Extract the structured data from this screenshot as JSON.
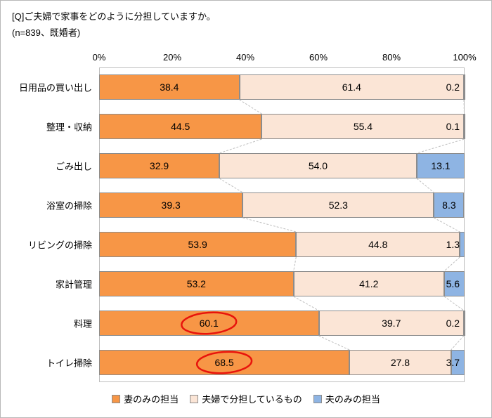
{
  "title": "[Q]ご夫婦で家事をどのように分担していますか。",
  "subtitle": "(n=839、既婚者)",
  "chart_data": {
    "type": "bar",
    "orientation": "horizontal",
    "stacked": true,
    "categories": [
      "日用品の買い出し",
      "整理・収納",
      "ごみ出し",
      "浴室の掃除",
      "リビングの掃除",
      "家計管理",
      "料理",
      "トイレ掃除"
    ],
    "series": [
      {
        "name": "妻のみの担当",
        "color": "#F79646",
        "values": [
          38.4,
          44.5,
          32.9,
          39.3,
          53.9,
          53.2,
          60.1,
          68.5
        ]
      },
      {
        "name": "夫婦で分担しているもの",
        "color": "#FBE5D6",
        "values": [
          61.4,
          55.4,
          54.0,
          52.3,
          44.8,
          41.2,
          39.7,
          27.8
        ]
      },
      {
        "name": "夫のみの担当",
        "color": "#8EB4E3",
        "values": [
          0.2,
          0.1,
          13.1,
          8.3,
          1.3,
          5.6,
          0.2,
          3.7
        ]
      }
    ],
    "x_ticks": [
      {
        "label": "0%",
        "value": 0
      },
      {
        "label": "20%",
        "value": 20
      },
      {
        "label": "40%",
        "value": 40
      },
      {
        "label": "60%",
        "value": 60
      },
      {
        "label": "80%",
        "value": 80
      },
      {
        "label": "100%",
        "value": 100
      }
    ],
    "xlim": [
      0,
      100
    ],
    "legend_position": "bottom",
    "annotations": {
      "circled_values": [
        {
          "category_index": 6,
          "series_index": 0,
          "value": 60.1
        },
        {
          "category_index": 7,
          "series_index": 0,
          "value": 68.5
        }
      ],
      "circle_color": "#e8140c"
    }
  }
}
